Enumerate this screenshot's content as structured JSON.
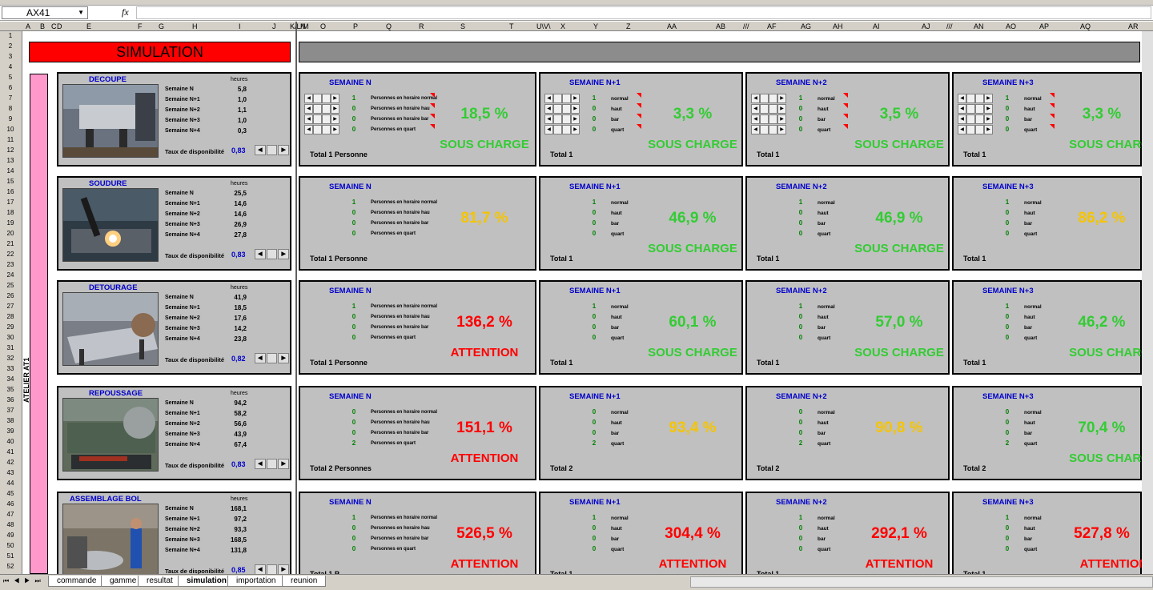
{
  "formula_bar": {
    "cell": "AX41",
    "fx": "fx"
  },
  "columns": [
    [
      "A",
      32
    ],
    [
      "B",
      50
    ],
    [
      "C",
      64
    ],
    [
      "D",
      71
    ],
    [
      "E",
      108
    ],
    [
      "F",
      172
    ],
    [
      "G",
      198
    ],
    [
      "H",
      240
    ],
    [
      "I",
      298
    ],
    [
      "J",
      340
    ],
    [
      "K/L/M",
      362
    ],
    [
      "N",
      375
    ],
    [
      "O",
      400
    ],
    [
      "P",
      441
    ],
    [
      "Q",
      482
    ],
    [
      "R",
      523
    ],
    [
      "S",
      575
    ],
    [
      "T",
      636
    ],
    [
      "U\\V\\",
      670
    ],
    [
      "X",
      700
    ],
    [
      "Y",
      741
    ],
    [
      "Z",
      782
    ],
    [
      "AA",
      833
    ],
    [
      "AB",
      894
    ],
    [
      "AAA",
      928
    ],
    [
      "AF",
      958
    ],
    [
      "AG",
      1000
    ],
    [
      "AH",
      1040
    ],
    [
      "AI",
      1090
    ],
    [
      "AJ",
      1151
    ],
    [
      "AAA2",
      1182
    ],
    [
      "AN",
      1216
    ],
    [
      "AO",
      1256
    ],
    [
      "AP",
      1298
    ],
    [
      "AQ",
      1349
    ],
    [
      "AR",
      1409
    ]
  ],
  "simulation_title": "SIMULATION",
  "atelier_label": "ATELIER AT1",
  "heures_label": "heures",
  "taux_label": "Taux de disponibilité",
  "left_labels": [
    "Semaine N",
    "Semaine N+1",
    "Semaine N+2",
    "Semaine N+3",
    "Semaine N+4"
  ],
  "stations": [
    {
      "name": "DECOUPE",
      "values": [
        "5,8",
        "1,0",
        "1,1",
        "1,0",
        "0,3"
      ],
      "taux": "0,83",
      "photo": "metal-cutting-machine",
      "weeks": [
        {
          "title": "SEMAINE N",
          "nums": [
            "1",
            "0",
            "0",
            "0"
          ],
          "labels": [
            "Personnes en horaire normal",
            "Personnes en horaire hau",
            "Personnes en horaire bar",
            "Personnes en quart"
          ],
          "pct": "18,5 %",
          "pct_color": "#33cc33",
          "status": "SOUS CHARGE",
          "status_color": "#33cc33",
          "total": "Total   1  Personne"
        },
        {
          "title": "SEMAINE N+1",
          "nums": [
            "1",
            "0",
            "0",
            "0"
          ],
          "labels": [
            "normal",
            "haut",
            "bar",
            "quart"
          ],
          "pct": "3,3 %",
          "pct_color": "#33cc33",
          "status": "SOUS CHARGE",
          "status_color": "#33cc33",
          "total": "Total        1"
        },
        {
          "title": "SEMAINE N+2",
          "nums": [
            "1",
            "0",
            "0",
            "0"
          ],
          "labels": [
            "normal",
            "haut",
            "bar",
            "quart"
          ],
          "pct": "3,5 %",
          "pct_color": "#33cc33",
          "status": "SOUS CHARGE",
          "status_color": "#33cc33",
          "total": "Total        1"
        },
        {
          "title": "SEMAINE N+3",
          "nums": [
            "1",
            "0",
            "0",
            "0"
          ],
          "labels": [
            "normal",
            "haut",
            "bar",
            "quart"
          ],
          "pct": "3,3 %",
          "pct_color": "#33cc33",
          "status": "SOUS CHARGE",
          "status_color": "#33cc33",
          "total": "Total        1"
        }
      ]
    },
    {
      "name": "SOUDURE",
      "values": [
        "25,5",
        "14,6",
        "14,6",
        "26,9",
        "27,8"
      ],
      "taux": "0,83",
      "photo": "welding",
      "weeks": [
        {
          "title": "SEMAINE N",
          "nums": [
            "1",
            "0",
            "0",
            "0"
          ],
          "labels": [
            "Personnes en horaire normal",
            "Personnes en horaire hau",
            "Personnes en horaire bar",
            "Personnes en quart"
          ],
          "pct": "81,7 %",
          "pct_color": "#f5c400",
          "status": "",
          "status_color": "#33cc33",
          "total": "Total   1  Personne"
        },
        {
          "title": "SEMAINE N+1",
          "nums": [
            "1",
            "0",
            "0",
            "0"
          ],
          "labels": [
            "normal",
            "haut",
            "bar",
            "quart"
          ],
          "pct": "46,9 %",
          "pct_color": "#33cc33",
          "status": "SOUS CHARGE",
          "status_color": "#33cc33",
          "total": "Total        1"
        },
        {
          "title": "SEMAINE N+2",
          "nums": [
            "1",
            "0",
            "0",
            "0"
          ],
          "labels": [
            "normal",
            "haut",
            "bar",
            "quart"
          ],
          "pct": "46,9 %",
          "pct_color": "#33cc33",
          "status": "SOUS CHARGE",
          "status_color": "#33cc33",
          "total": "Total        1"
        },
        {
          "title": "SEMAINE N+3",
          "nums": [
            "1",
            "0",
            "0",
            "0"
          ],
          "labels": [
            "normal",
            "haut",
            "bar",
            "quart"
          ],
          "pct": "86,2 %",
          "pct_color": "#f5c400",
          "status": "",
          "status_color": "#33cc33",
          "total": "Total        1"
        }
      ]
    },
    {
      "name": "DETOURAGE",
      "values": [
        "41,9",
        "18,5",
        "17,6",
        "14,2",
        "23,8"
      ],
      "taux": "0,82",
      "photo": "workshop-table",
      "weeks": [
        {
          "title": "SEMAINE N",
          "nums": [
            "1",
            "0",
            "0",
            "0"
          ],
          "labels": [
            "Personnes en horaire normal",
            "Personnes en horaire hau",
            "Personnes en horaire bar",
            "Personnes en quart"
          ],
          "pct": "136,2 %",
          "pct_color": "#ff0000",
          "status": "ATTENTION",
          "status_color": "#ff0000",
          "total": "Total   1  Personne"
        },
        {
          "title": "SEMAINE N+1",
          "nums": [
            "1",
            "0",
            "0",
            "0"
          ],
          "labels": [
            "normal",
            "haut",
            "bar",
            "quart"
          ],
          "pct": "60,1 %",
          "pct_color": "#33cc33",
          "status": "SOUS CHARGE",
          "status_color": "#33cc33",
          "total": "Total        1"
        },
        {
          "title": "SEMAINE N+2",
          "nums": [
            "1",
            "0",
            "0",
            "0"
          ],
          "labels": [
            "normal",
            "haut",
            "bar",
            "quart"
          ],
          "pct": "57,0 %",
          "pct_color": "#33cc33",
          "status": "SOUS CHARGE",
          "status_color": "#33cc33",
          "total": "Total        1"
        },
        {
          "title": "SEMAINE N+3",
          "nums": [
            "1",
            "0",
            "0",
            "0"
          ],
          "labels": [
            "normal",
            "haut",
            "bar",
            "quart"
          ],
          "pct": "46,2 %",
          "pct_color": "#33cc33",
          "status": "SOUS CHARGE",
          "status_color": "#33cc33",
          "total": "Total        1"
        }
      ]
    },
    {
      "name": "REPOUSSAGE",
      "values": [
        "94,2",
        "58,2",
        "56,6",
        "43,9",
        "67,4"
      ],
      "taux": "0,83",
      "photo": "lathe",
      "weeks": [
        {
          "title": "SEMAINE N",
          "nums": [
            "0",
            "0",
            "0",
            "2"
          ],
          "labels": [
            "Personnes en horaire normal",
            "Personnes en horaire hau",
            "Personnes en horaire bar",
            "Personnes en quart"
          ],
          "pct": "151,1 %",
          "pct_color": "#ff0000",
          "status": "ATTENTION",
          "status_color": "#ff0000",
          "total": "Total   2  Personnes"
        },
        {
          "title": "SEMAINE N+1",
          "nums": [
            "0",
            "0",
            "0",
            "2"
          ],
          "labels": [
            "normal",
            "haut",
            "bar",
            "quart"
          ],
          "pct": "93,4 %",
          "pct_color": "#f5c400",
          "status": "",
          "status_color": "#33cc33",
          "total": "Total        2"
        },
        {
          "title": "SEMAINE N+2",
          "nums": [
            "0",
            "0",
            "0",
            "2"
          ],
          "labels": [
            "normal",
            "haut",
            "bar",
            "quart"
          ],
          "pct": "90,8 %",
          "pct_color": "#f5c400",
          "status": "",
          "status_color": "#33cc33",
          "total": "Total        2"
        },
        {
          "title": "SEMAINE N+3",
          "nums": [
            "0",
            "0",
            "0",
            "2"
          ],
          "labels": [
            "normal",
            "haut",
            "bar",
            "quart"
          ],
          "pct": "70,4 %",
          "pct_color": "#33cc33",
          "status": "SOUS CHARGE",
          "status_color": "#33cc33",
          "total": "Total        2"
        }
      ]
    },
    {
      "name": "ASSEMBLAGE BOL",
      "values": [
        "168,1",
        "97,2",
        "93,3",
        "168,5",
        "131,8"
      ],
      "taux": "0,85",
      "photo": "assembly-worker",
      "weeks": [
        {
          "title": "SEMAINE N",
          "nums": [
            "1",
            "0",
            "0",
            "0"
          ],
          "labels": [
            "Personnes en horaire normal",
            "Personnes en horaire hau",
            "Personnes en horaire bar",
            "Personnes en quart"
          ],
          "pct": "526,5 %",
          "pct_color": "#ff0000",
          "status": "ATTENTION",
          "status_color": "#ff0000",
          "total": "Total   1  P"
        },
        {
          "title": "SEMAINE N+1",
          "nums": [
            "1",
            "0",
            "0",
            "0"
          ],
          "labels": [
            "normal",
            "haut",
            "bar",
            "quart"
          ],
          "pct": "304,4 %",
          "pct_color": "#ff0000",
          "status": "ATTENTION",
          "status_color": "#ff0000",
          "total": "Total        1"
        },
        {
          "title": "SEMAINE N+2",
          "nums": [
            "1",
            "0",
            "0",
            "0"
          ],
          "labels": [
            "normal",
            "haut",
            "bar",
            "quart"
          ],
          "pct": "292,1 %",
          "pct_color": "#ff0000",
          "status": "ATTENTION",
          "status_color": "#ff0000",
          "total": "Total        1"
        },
        {
          "title": "SEMAINE N+3",
          "nums": [
            "1",
            "0",
            "0",
            "0"
          ],
          "labels": [
            "normal",
            "haut",
            "bar",
            "quart"
          ],
          "pct": "527,8 %",
          "pct_color": "#ff0000",
          "status": "ATTENTION",
          "status_color": "#ff0000",
          "total": "Total        1"
        }
      ]
    }
  ],
  "sheet_tabs": [
    "commande",
    "gamme",
    "resultat",
    "simulation",
    "importation",
    "reunion"
  ],
  "active_tab": "simulation"
}
